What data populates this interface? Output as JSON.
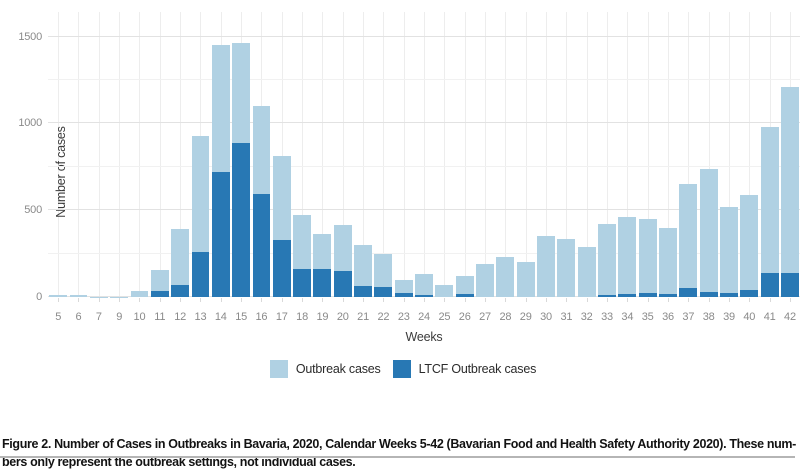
{
  "chart_data": {
    "type": "bar",
    "title": "",
    "xlabel": "Weeks",
    "ylabel": "Number of cases",
    "x": [
      "5",
      "6",
      "7",
      "9",
      "10",
      "11",
      "12",
      "13",
      "14",
      "15",
      "16",
      "17",
      "18",
      "19",
      "20",
      "21",
      "22",
      "23",
      "24",
      "25",
      "26",
      "27",
      "28",
      "29",
      "30",
      "31",
      "32",
      "33",
      "34",
      "35",
      "36",
      "37",
      "38",
      "39",
      "40",
      "41",
      "42"
    ],
    "series": [
      {
        "name": "Outbreak cases",
        "color": "#b0d1e3",
        "role": "total bar height (all outbreak cases, light blue)",
        "values": [
          10,
          10,
          2,
          1,
          35,
          155,
          390,
          930,
          1450,
          1465,
          1100,
          815,
          470,
          365,
          415,
          300,
          245,
          100,
          135,
          70,
          120,
          190,
          230,
          200,
          350,
          335,
          290,
          420,
          460,
          450,
          400,
          650,
          735,
          520,
          585,
          980,
          1210
        ]
      },
      {
        "name": "LTCF Outbreak cases",
        "color": "#2878b4",
        "role": "dark blue segment drawn from baseline inside each bar",
        "values": [
          0,
          0,
          0,
          0,
          0,
          35,
          70,
          260,
          720,
          890,
          595,
          330,
          160,
          160,
          150,
          65,
          55,
          25,
          10,
          0,
          15,
          0,
          0,
          0,
          0,
          0,
          0,
          10,
          15,
          25,
          15,
          50,
          30,
          25,
          40,
          140,
          140
        ]
      }
    ],
    "y_ticks": [
      0,
      500,
      1000,
      1500
    ],
    "y_minor_ticks": [
      250,
      750,
      1250
    ],
    "ylim": [
      0,
      1640
    ],
    "grid": true,
    "legend_position": "bottom"
  },
  "figure": {
    "caption_line1": "Figure 2. Number of Cases in Outbreaks in Bavaria, 2020, Calendar Weeks 5-42 (Bavarian Food and Health Safety Authority 2020). These num-",
    "caption_line2": "bers only represent the outbreak settings, not individual cases."
  },
  "colors": {
    "outbreak_light": "#b0d1e3",
    "ltcf_dark": "#2878b4",
    "grid_major": "#e2e2e2",
    "grid_minor": "#f1f1f1",
    "tick_text": "#8a8a8a",
    "axis_title_text": "#3b3b3b",
    "caption_text": "#121212",
    "bottom_rule": "#b5b5b5"
  }
}
